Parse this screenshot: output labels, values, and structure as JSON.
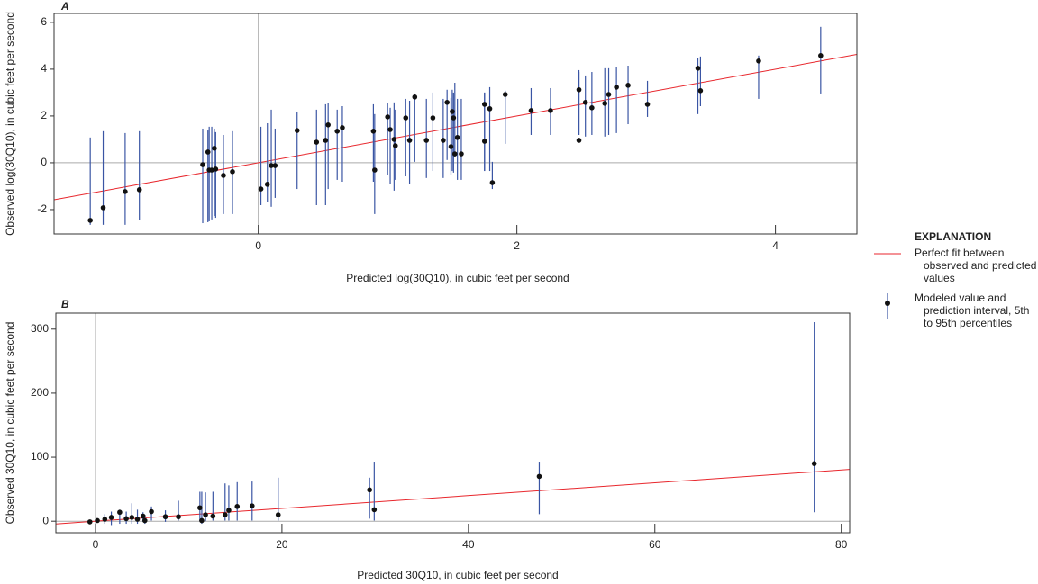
{
  "chart_data": [
    {
      "type": "scatter",
      "label": "A",
      "xlabel": "Predicted log(30Q10), in cubic feet per second",
      "ylabel": "Observed log(30Q10), in cubic feet per second",
      "xlim": [
        -1.58,
        4.63
      ],
      "ylim": [
        -3.04,
        6.38
      ],
      "xticks": [
        0,
        2,
        4
      ],
      "yticks": [
        -2,
        0,
        2,
        4,
        6
      ],
      "zero_lines": true,
      "fit_line_color": "#e8262c",
      "points": {
        "color": "#111111",
        "bar_color": "#3a55a4",
        "x": [
          -1.3,
          -1.2,
          -1.03,
          -0.92,
          -0.43,
          -0.39,
          -0.38,
          -0.36,
          -0.34,
          -0.33,
          -0.27,
          -0.2,
          0.02,
          0.07,
          0.1,
          0.13,
          0.3,
          0.45,
          0.52,
          0.54,
          0.61,
          0.65,
          0.89,
          0.9,
          1.0,
          1.02,
          1.05,
          1.06,
          1.14,
          1.17,
          1.21,
          1.3,
          1.35,
          1.43,
          1.46,
          1.49,
          1.5,
          1.51,
          1.52,
          1.54,
          1.57,
          1.75,
          1.75,
          1.79,
          1.81,
          1.91,
          2.11,
          2.26,
          2.48,
          2.48,
          2.53,
          2.58,
          2.68,
          2.71,
          2.77,
          2.86,
          3.01,
          3.4,
          3.42,
          3.87,
          4.35
        ],
        "values": [
          -2.46,
          -1.92,
          -1.23,
          -1.15,
          -0.08,
          0.46,
          -0.31,
          -0.31,
          0.62,
          -0.27,
          -0.54,
          -0.38,
          -1.12,
          -0.92,
          -0.12,
          -0.12,
          1.38,
          0.88,
          0.96,
          1.62,
          1.35,
          1.5,
          1.35,
          -0.31,
          1.96,
          1.42,
          1.0,
          0.73,
          1.92,
          0.96,
          2.81,
          0.96,
          1.92,
          0.96,
          2.58,
          0.69,
          2.19,
          1.92,
          0.38,
          1.08,
          0.38,
          0.92,
          2.5,
          2.31,
          -0.85,
          2.92,
          2.23,
          2.23,
          3.12,
          0.96,
          2.58,
          2.35,
          2.54,
          2.92,
          3.23,
          3.31,
          2.5,
          4.04,
          3.08,
          4.35,
          4.58
        ],
        "lower": [
          -2.65,
          -2.65,
          -2.65,
          -2.46,
          -2.58,
          -2.54,
          -2.5,
          -2.42,
          -2.27,
          -2.35,
          -2.19,
          -2.19,
          -1.81,
          -1.69,
          -1.88,
          -1.5,
          -1.12,
          -1.81,
          -1.81,
          -1.12,
          -0.73,
          -0.81,
          -0.81,
          -2.19,
          -0.54,
          -0.92,
          -1.19,
          -0.73,
          -0.58,
          -0.92,
          0.04,
          -0.65,
          -0.35,
          -0.65,
          0.12,
          -0.54,
          -0.35,
          -0.42,
          0.23,
          -0.73,
          -0.73,
          -0.35,
          -0.35,
          -0.35,
          -1.12,
          0.81,
          1.19,
          1.19,
          1.19,
          1.19,
          1.12,
          1.19,
          1.12,
          1.19,
          1.27,
          1.65,
          1.96,
          2.08,
          2.42,
          2.73,
          2.96
        ],
        "upper": [
          1.08,
          1.35,
          1.27,
          1.35,
          1.46,
          1.38,
          1.54,
          1.54,
          1.46,
          1.31,
          1.19,
          1.35,
          1.54,
          1.69,
          2.27,
          1.46,
          2.19,
          2.27,
          2.5,
          2.54,
          2.27,
          2.42,
          2.5,
          2.08,
          2.54,
          2.35,
          2.58,
          2.27,
          2.73,
          2.65,
          2.96,
          2.73,
          3.0,
          2.73,
          3.12,
          2.77,
          3.12,
          3.0,
          3.42,
          2.73,
          2.73,
          3.0,
          3.0,
          3.23,
          0.04,
          3.08,
          3.19,
          3.19,
          3.96,
          3.88,
          3.73,
          3.88,
          4.04,
          4.04,
          4.08,
          4.15,
          3.5,
          4.46,
          4.54,
          4.58,
          5.81
        ]
      }
    },
    {
      "type": "scatter",
      "label": "B",
      "xlabel": "Predicted 30Q10, in cubic feet per second",
      "ylabel": "Observed 30Q10, in cubic feet per second",
      "xlim": [
        -4.25,
        80.9
      ],
      "ylim": [
        -18,
        325
      ],
      "xticks": [
        0,
        20,
        40,
        60,
        80
      ],
      "yticks": [
        0,
        100,
        200,
        300
      ],
      "zero_lines": true,
      "fit_line_color": "#e8262c",
      "points": {
        "color": "#111111",
        "bar_color": "#3a55a4",
        "x": [
          -0.6,
          0.2,
          1.0,
          1.7,
          2.6,
          3.3,
          3.9,
          4.5,
          5.1,
          5.3,
          6.0,
          7.5,
          8.9,
          11.2,
          11.4,
          11.8,
          12.6,
          13.9,
          14.3,
          15.2,
          16.8,
          19.6,
          29.4,
          29.9,
          47.6,
          77.1
        ],
        "values": [
          -1,
          1,
          3,
          6,
          14,
          4,
          6,
          3,
          8,
          1,
          15,
          7,
          7,
          21,
          1,
          10,
          8,
          10,
          17,
          23,
          24,
          10,
          49,
          18,
          70,
          90
        ],
        "lower": [
          -3,
          -2,
          -4,
          -6,
          -4,
          -4,
          -4,
          -4,
          -1,
          -4,
          1,
          -1,
          1,
          0,
          -4,
          0,
          1,
          1,
          1,
          1,
          1,
          1,
          4,
          1,
          11,
          14
        ],
        "upper": [
          1,
          3,
          11,
          15,
          18,
          15,
          28,
          18,
          14,
          10,
          23,
          17,
          32,
          46,
          46,
          45,
          46,
          59,
          56,
          61,
          62,
          68,
          68,
          93,
          93,
          311
        ]
      }
    }
  ],
  "legend": {
    "title": "EXPLANATION",
    "items": [
      "Perfect fit between observed and predicted values",
      "Modeled value and prediction interval, 5th to 95th percentiles"
    ]
  }
}
